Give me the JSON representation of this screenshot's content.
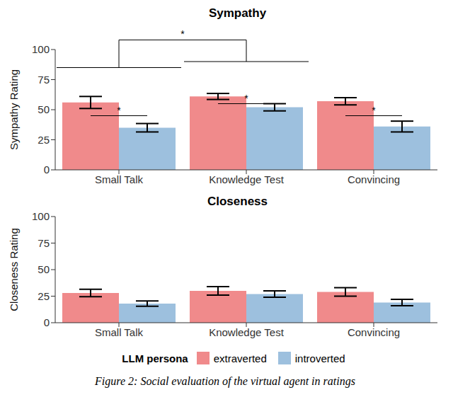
{
  "chart_data": [
    {
      "type": "bar",
      "title": "Sympathy",
      "y_label": "Sympathy Rating",
      "categories": [
        "Small Talk",
        "Knowledge Test",
        "Convincing"
      ],
      "series": [
        {
          "name": "extraverted",
          "color": "#f08a8b",
          "values": [
            56,
            61,
            57
          ],
          "errors": [
            5,
            2.5,
            3
          ]
        },
        {
          "name": "introverted",
          "color": "#9dc0de",
          "values": [
            35,
            52,
            36
          ],
          "errors": [
            3.5,
            3,
            4.5
          ]
        }
      ],
      "ylim": [
        0,
        100
      ],
      "yticks": [
        0,
        25,
        50,
        75,
        100
      ],
      "significance": [
        {
          "groups": [
            "Small Talk",
            "Knowledge Test"
          ],
          "levels": [
            85,
            90
          ],
          "top": 108,
          "label": "*"
        },
        {
          "groups": [
            "Small Talk"
          ],
          "levels": [
            45
          ],
          "label": "*"
        },
        {
          "groups": [
            "Knowledge Test"
          ],
          "levels": [
            55
          ],
          "label": "*"
        },
        {
          "groups": [
            "Convincing"
          ],
          "levels": [
            45
          ],
          "label": "*"
        }
      ]
    },
    {
      "type": "bar",
      "title": "Closeness",
      "y_label": "Closeness Rating",
      "categories": [
        "Small Talk",
        "Knowledge Test",
        "Convincing"
      ],
      "series": [
        {
          "name": "extraverted",
          "color": "#f08a8b",
          "values": [
            28,
            30,
            29
          ],
          "errors": [
            3.5,
            4,
            4
          ]
        },
        {
          "name": "introverted",
          "color": "#9dc0de",
          "values": [
            18,
            27,
            19
          ],
          "errors": [
            2.5,
            3,
            3
          ]
        }
      ],
      "ylim": [
        0,
        100
      ],
      "yticks": [
        0,
        25,
        50,
        75,
        100
      ]
    }
  ],
  "legend_title": "LLM persona",
  "legend": "bottom",
  "caption": "Figure 2: Social evaluation of the virtual agent in ratings"
}
